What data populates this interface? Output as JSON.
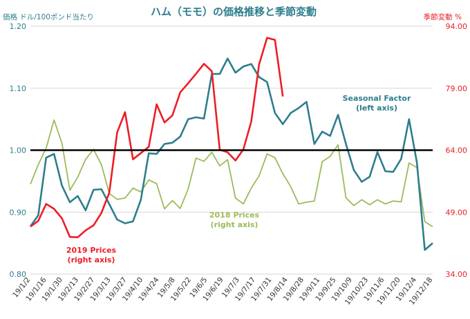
{
  "chart_data": {
    "type": "line",
    "title": "ハム（モモ）の価格推移と季節変動",
    "left_axis_title": "価格 ドル/100ポンド当たり",
    "right_axis_title": "季節変動 %",
    "left_ylim": [
      0.8,
      1.2
    ],
    "right_ylim": [
      34,
      94
    ],
    "left_ticks": [
      "0.80",
      "0.90",
      "1.00",
      "1.10",
      "1.20"
    ],
    "right_ticks": [
      "34.00",
      "49.00",
      "64.00",
      "79.00",
      "94.00"
    ],
    "x_tick_labels": [
      "19/1/2",
      "19/1/16",
      "19/1/30",
      "19/2/13",
      "19/2/27",
      "19/3/13",
      "19/3/27",
      "19/4/10",
      "19/4/24",
      "19/5/8",
      "19/5/22",
      "19/6/5",
      "19/6/19",
      "19/7/3",
      "19/7/17",
      "19/7/31",
      "19/8/14",
      "19/8/28",
      "19/9/11",
      "19/9/25",
      "19/10/9",
      "19/10/23",
      "19/11/6",
      "19/11/20",
      "19/12/4",
      "19/12/18"
    ],
    "reference_line": {
      "axis": "left",
      "value": 1.0,
      "color": "#000000"
    },
    "series": [
      {
        "name": "Seasonal Factor",
        "label_lines": [
          "Seasonal Factor",
          "(left axis)"
        ],
        "axis": "left",
        "color": "#2e7d8c",
        "values": [
          0.877,
          0.895,
          0.988,
          0.994,
          0.943,
          0.916,
          0.926,
          0.903,
          0.936,
          0.937,
          0.913,
          0.888,
          0.882,
          0.885,
          0.92,
          0.995,
          0.994,
          1.01,
          1.012,
          1.022,
          1.05,
          1.053,
          1.051,
          1.123,
          1.123,
          1.148,
          1.125,
          1.135,
          1.139,
          1.118,
          1.11,
          1.06,
          1.042,
          1.06,
          1.068,
          1.078,
          1.01,
          1.03,
          1.023,
          1.057,
          1.01,
          0.968,
          0.949,
          0.957,
          0.997,
          0.966,
          0.965,
          0.986,
          1.05,
          0.98,
          0.839,
          0.85
        ]
      },
      {
        "name": "2018 Prices",
        "label_lines": [
          "2018 Prices",
          "(right axis)"
        ],
        "axis": "right",
        "color": "#9bbb59",
        "values": [
          55.8,
          60.5,
          64.5,
          71.3,
          65.7,
          54.3,
          57.5,
          61.8,
          64.2,
          60.5,
          53.5,
          52.1,
          52.4,
          54.8,
          53.9,
          56.8,
          55.9,
          49.8,
          51.8,
          49.9,
          54.6,
          62.1,
          61.3,
          63.5,
          60.2,
          61.7,
          52.4,
          51.0,
          54.8,
          57.8,
          63.1,
          62.2,
          58.3,
          55.2,
          51.0,
          51.4,
          51.7,
          61.2,
          62.5,
          65.3,
          52.5,
          50.6,
          52.0,
          50.8,
          52.0,
          51.0,
          51.7,
          51.5,
          60.9,
          59.8,
          46.7,
          45.5
        ]
      },
      {
        "name": "2019 Prices",
        "label_lines": [
          "2019 Prices",
          "(right axis)"
        ],
        "axis": "right",
        "color": "#ee1c25",
        "values": [
          45.5,
          46.9,
          51.0,
          49.8,
          47.5,
          43.0,
          42.9,
          44.6,
          45.8,
          48.8,
          53.7,
          68.3,
          73.2,
          61.8,
          63.3,
          64.8,
          75.1,
          70.7,
          72.4,
          78.0,
          80.2,
          82.5,
          84.9,
          83.1,
          64.1,
          63.5,
          61.5,
          64.2,
          70.9,
          84.8,
          91.2,
          90.7,
          77.0
        ]
      }
    ]
  }
}
